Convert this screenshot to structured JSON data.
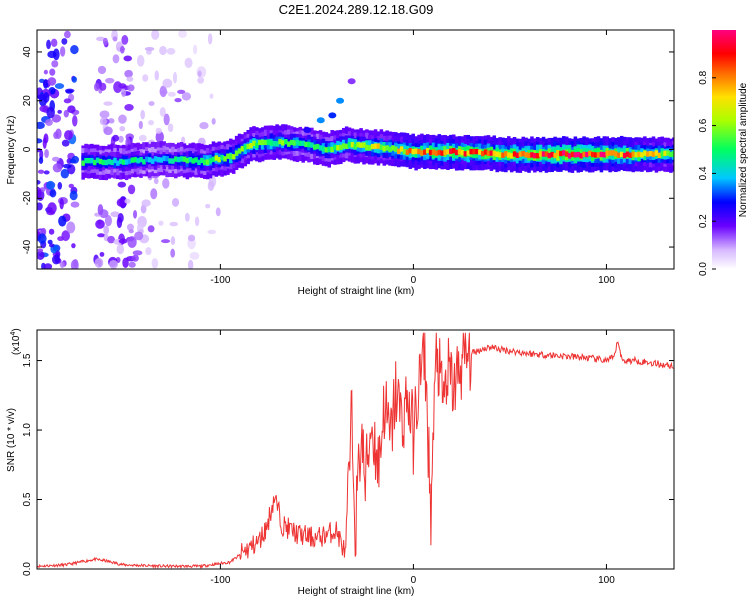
{
  "figure": {
    "title": "C2E1.2024.289.12.18.G09"
  },
  "chart_data": [
    {
      "type": "heatmap",
      "xlabel": "Height of straight line (km)",
      "ylabel": "Frequency (Hz)",
      "xlim": [
        -195,
        135
      ],
      "ylim": [
        -49,
        49
      ],
      "xticks": [
        -100,
        0,
        100
      ],
      "xtick_labels": [
        "-100",
        "0",
        "100"
      ],
      "yticks": [
        -40,
        -20,
        0,
        20,
        40
      ],
      "ytick_labels": [
        "-40",
        "-20",
        "0",
        "20",
        "40"
      ],
      "grid": false,
      "colorbar": {
        "label": "Normalized spectral amplitude",
        "range": [
          0,
          1
        ],
        "ticks": [
          0.0,
          0.2,
          0.4,
          0.6,
          0.8
        ],
        "tick_labels": [
          "0.0",
          "0.2",
          "0.4",
          "0.6",
          "0.8"
        ]
      },
      "ridge": {
        "x_start": -172,
        "x": [
          -172,
          -150,
          -130,
          -110,
          -95,
          -85,
          -70,
          -55,
          -45,
          -35,
          -20,
          -10,
          0,
          20,
          50,
          80,
          100,
          135
        ],
        "center_freq": [
          -5,
          -5,
          -4,
          -5,
          -3,
          2,
          3,
          2,
          0,
          2,
          1,
          0,
          -1,
          -1,
          -2,
          -2,
          -2,
          -2
        ],
        "amplitude": [
          0.5,
          0.45,
          0.4,
          0.55,
          0.6,
          0.6,
          0.55,
          0.5,
          0.55,
          0.6,
          0.65,
          0.7,
          0.75,
          0.85,
          0.8,
          0.95,
          0.9,
          0.6
        ]
      }
    },
    {
      "type": "line",
      "xlabel": "Height of straight line (km)",
      "ylabel": "SNR (10 * v/v)",
      "y_multiplier": "(x10",
      "y_multiplier_exp": "4",
      "xlim": [
        -195,
        135
      ],
      "ylim": [
        0,
        1.72
      ],
      "xticks": [
        -100,
        0,
        100
      ],
      "xtick_labels": [
        "-100",
        "0",
        "100"
      ],
      "yticks": [
        0.0,
        0.5,
        1.0,
        1.5
      ],
      "ytick_labels": [
        "0.0",
        "0.5",
        "1.0",
        "1.5"
      ],
      "grid": false,
      "series": [
        {
          "color": "#ee3333",
          "x": [
            -195,
            -180,
            -165,
            -160,
            -150,
            -130,
            -110,
            -95,
            -88,
            -80,
            -76,
            -72,
            -68,
            -60,
            -50,
            -40,
            -35,
            -32,
            -30,
            -27,
            -25,
            -22,
            -18,
            -15,
            -12,
            -9,
            -6,
            -3,
            0,
            3,
            6,
            9,
            12,
            15,
            18,
            21,
            24,
            27,
            30,
            35,
            40,
            45,
            50,
            60,
            70,
            80,
            90,
            100,
            104,
            106,
            108,
            115,
            125,
            135
          ],
          "y": [
            0.02,
            0.03,
            0.07,
            0.06,
            0.03,
            0.02,
            0.02,
            0.05,
            0.12,
            0.2,
            0.3,
            0.52,
            0.32,
            0.25,
            0.22,
            0.28,
            0.1,
            1.1,
            0.3,
            1.0,
            0.6,
            1.05,
            0.75,
            1.2,
            0.9,
            1.3,
            1.05,
            1.25,
            0.95,
            1.35,
            1.55,
            0.4,
            1.6,
            1.2,
            1.4,
            1.3,
            1.45,
            1.52,
            1.55,
            1.58,
            1.6,
            1.58,
            1.57,
            1.55,
            1.54,
            1.53,
            1.52,
            1.5,
            1.52,
            1.65,
            1.5,
            1.5,
            1.48,
            1.46
          ]
        }
      ]
    }
  ]
}
